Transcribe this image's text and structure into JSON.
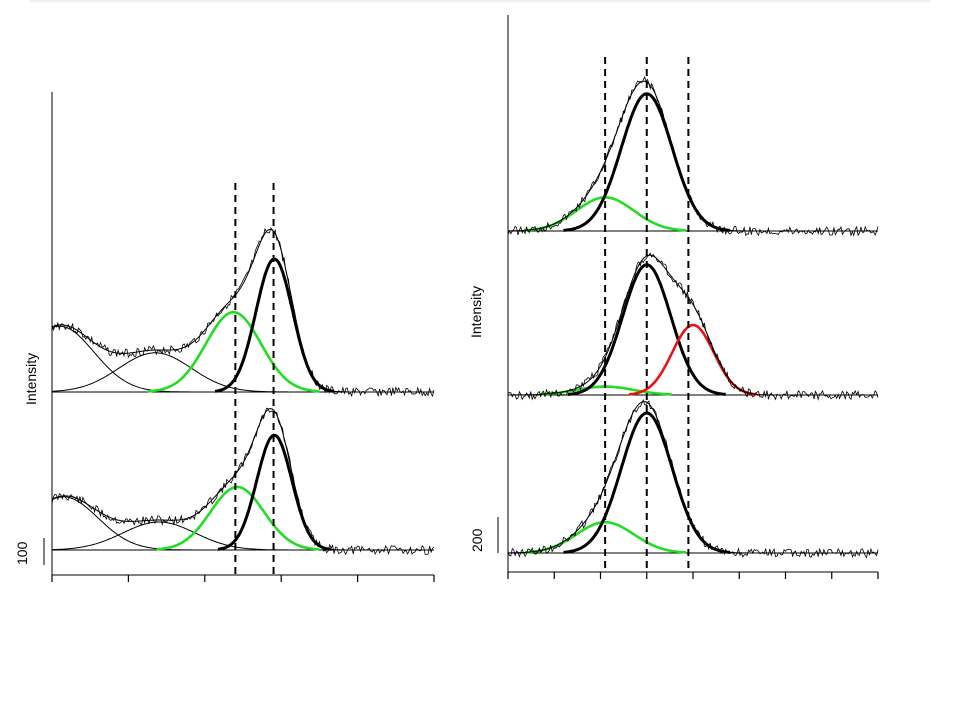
{
  "chart_data": [
    {
      "type": "line",
      "panel": "left",
      "ylabel": "Intensity",
      "scale_bar_label": "100",
      "xlim": [
        0,
        10
      ],
      "x_ticks": [
        0,
        2,
        4,
        6,
        8
      ],
      "vlines": [
        4.8,
        5.8
      ],
      "colors": {
        "raw": "#000000",
        "fit_envelope": "#000000",
        "main_peak": "#000000",
        "shoulder": "#22dd22",
        "baseline_component": "#000000"
      },
      "traces": [
        {
          "offset": 290,
          "height": 140,
          "noise_seed": 3,
          "components": [
            {
              "role": "background",
              "center": 0.2,
              "width": 0.9,
              "amp": 0.47
            },
            {
              "role": "background",
              "center": 2.7,
              "width": 0.95,
              "amp": 0.28
            },
            {
              "role": "shoulder",
              "center": 4.75,
              "width": 0.72,
              "amp": 0.57
            },
            {
              "role": "main_peak",
              "center": 5.82,
              "width": 0.48,
              "amp": 0.95
            }
          ]
        },
        {
          "offset": 0,
          "height": 140,
          "noise_seed": 11,
          "components": [
            {
              "role": "background",
              "center": 0.3,
              "width": 0.9,
              "amp": 0.38
            },
            {
              "role": "background",
              "center": 2.8,
              "width": 0.95,
              "amp": 0.2
            },
            {
              "role": "shoulder",
              "center": 4.85,
              "width": 0.7,
              "amp": 0.45
            },
            {
              "role": "main_peak",
              "center": 5.82,
              "width": 0.46,
              "amp": 0.82
            }
          ]
        }
      ]
    },
    {
      "type": "line",
      "panel": "right",
      "ylabel": "Intensity",
      "scale_bar_label": "200",
      "xlim": [
        0,
        8
      ],
      "x_ticks": [
        0,
        1,
        2,
        3,
        4,
        5,
        6,
        7
      ],
      "vlines": [
        2.1,
        3.0,
        3.9
      ],
      "colors": {
        "raw": "#000000",
        "fit_envelope": "#000000",
        "main_peak": "#000000",
        "shoulder": "#22dd22",
        "second_peak": "#ee1111"
      },
      "traces": [
        {
          "offset": 320,
          "height": 140,
          "noise_seed": 5,
          "components": [
            {
              "role": "shoulder",
              "center": 2.1,
              "width": 0.62,
              "amp": 0.24
            },
            {
              "role": "main_peak",
              "center": 3.0,
              "width": 0.55,
              "amp": 0.98
            }
          ]
        },
        {
          "offset": 158,
          "height": 140,
          "noise_seed": 21,
          "components": [
            {
              "role": "shoulder",
              "center": 2.1,
              "width": 0.62,
              "amp": 0.06
            },
            {
              "role": "main_peak",
              "center": 3.0,
              "width": 0.52,
              "amp": 0.93
            },
            {
              "role": "second_peak",
              "center": 4.0,
              "width": 0.45,
              "amp": 0.5
            }
          ]
        },
        {
          "offset": 0,
          "height": 140,
          "noise_seed": 33,
          "components": [
            {
              "role": "shoulder",
              "center": 2.1,
              "width": 0.62,
              "amp": 0.22
            },
            {
              "role": "main_peak",
              "center": 3.0,
              "width": 0.55,
              "amp": 1.0
            }
          ]
        }
      ]
    }
  ]
}
